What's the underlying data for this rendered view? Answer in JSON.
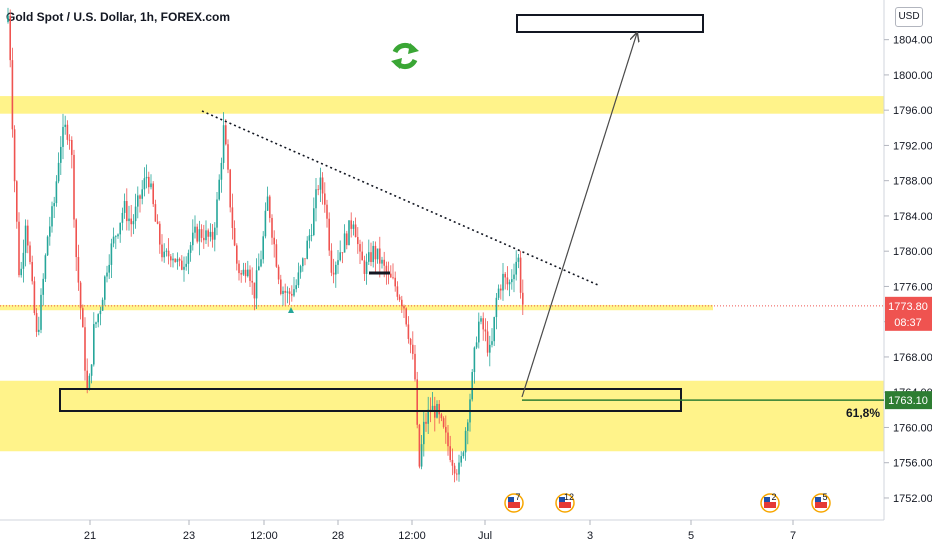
{
  "title": "Gold Spot / U.S. Dollar, 1h, FOREX.com",
  "currency_button": "USD",
  "refresh_icon": "refresh-icon",
  "chart_data": {
    "type": "candlestick",
    "ylim": [
      1749.5,
      1808.5
    ],
    "y_ticks": [
      "1804.00",
      "1800.00",
      "1796.00",
      "1792.00",
      "1788.00",
      "1784.00",
      "1780.00",
      "1776.00",
      "1772.00",
      "1768.00",
      "1764.00",
      "1760.00",
      "1756.00",
      "1752.00"
    ],
    "x_ticks": [
      "21",
      "23",
      "12:00",
      "28",
      "12:00",
      "Jul",
      "3",
      "5",
      "7"
    ],
    "current_price": {
      "label": "1773.80",
      "value": 1773.8,
      "countdown": "08:37",
      "color": "#ef5350"
    },
    "fib_price": {
      "label": "1763.10",
      "value": 1763.1,
      "color": "#2e7d32",
      "fib_label": "61,8%"
    },
    "zones": [
      {
        "from": 1795.6,
        "to": 1797.6,
        "color": "#fff176"
      },
      {
        "from": 1757.3,
        "to": 1765.3,
        "color": "#fff176"
      },
      {
        "from": 1773.3,
        "to": 1773.9,
        "color": "#fff176"
      }
    ],
    "candle_colors": {
      "up": "#26a69a",
      "down": "#ef5350"
    },
    "events": [
      {
        "x_tick": "Jul",
        "label": "7"
      },
      {
        "x_tick": "Jul",
        "label": "12"
      },
      {
        "x_tick": "5",
        "label": "2"
      },
      {
        "x_tick": "7",
        "label": "5"
      }
    ],
    "path": [
      [
        0,
        1806
      ],
      [
        3,
        1807
      ],
      [
        8,
        1790
      ],
      [
        14,
        1776
      ],
      [
        20,
        1784
      ],
      [
        26,
        1776
      ],
      [
        31,
        1770
      ],
      [
        36,
        1775
      ],
      [
        42,
        1782
      ],
      [
        48,
        1785
      ],
      [
        54,
        1792
      ],
      [
        60,
        1794
      ],
      [
        65,
        1793
      ],
      [
        70,
        1780
      ],
      [
        76,
        1772
      ],
      [
        82,
        1763
      ],
      [
        88,
        1771
      ],
      [
        95,
        1774
      ],
      [
        102,
        1779
      ],
      [
        110,
        1782
      ],
      [
        118,
        1785
      ],
      [
        126,
        1783
      ],
      [
        134,
        1786
      ],
      [
        142,
        1789
      ],
      [
        150,
        1783
      ],
      [
        158,
        1779
      ],
      [
        166,
        1780
      ],
      [
        174,
        1778
      ],
      [
        182,
        1780
      ],
      [
        190,
        1782
      ],
      [
        198,
        1782
      ],
      [
        206,
        1781
      ],
      [
        212,
        1786
      ],
      [
        218,
        1794
      ],
      [
        224,
        1786
      ],
      [
        230,
        1779
      ],
      [
        236,
        1777
      ],
      [
        242,
        1779
      ],
      [
        248,
        1775
      ],
      [
        256,
        1780
      ],
      [
        262,
        1786
      ],
      [
        268,
        1781
      ],
      [
        275,
        1776
      ],
      [
        282,
        1775
      ],
      [
        290,
        1776
      ],
      [
        298,
        1779
      ],
      [
        306,
        1783
      ],
      [
        313,
        1788
      ],
      [
        319,
        1786
      ],
      [
        326,
        1778
      ],
      [
        334,
        1780
      ],
      [
        342,
        1782
      ],
      [
        348,
        1784
      ],
      [
        354,
        1779
      ],
      [
        360,
        1778
      ],
      [
        367,
        1780
      ],
      [
        374,
        1779
      ],
      [
        382,
        1777
      ],
      [
        390,
        1776
      ],
      [
        398,
        1774
      ],
      [
        404,
        1770
      ],
      [
        409,
        1766
      ],
      [
        413,
        1755
      ],
      [
        418,
        1760
      ],
      [
        424,
        1762
      ],
      [
        430,
        1762
      ],
      [
        436,
        1760
      ],
      [
        442,
        1758
      ],
      [
        448,
        1756
      ],
      [
        454,
        1755
      ],
      [
        460,
        1760
      ],
      [
        466,
        1765
      ],
      [
        472,
        1772
      ],
      [
        478,
        1771
      ],
      [
        485,
        1768
      ],
      [
        491,
        1775
      ],
      [
        497,
        1777
      ],
      [
        503,
        1776
      ],
      [
        510,
        1779
      ],
      [
        513,
        1779
      ],
      [
        516,
        1774
      ]
    ]
  }
}
